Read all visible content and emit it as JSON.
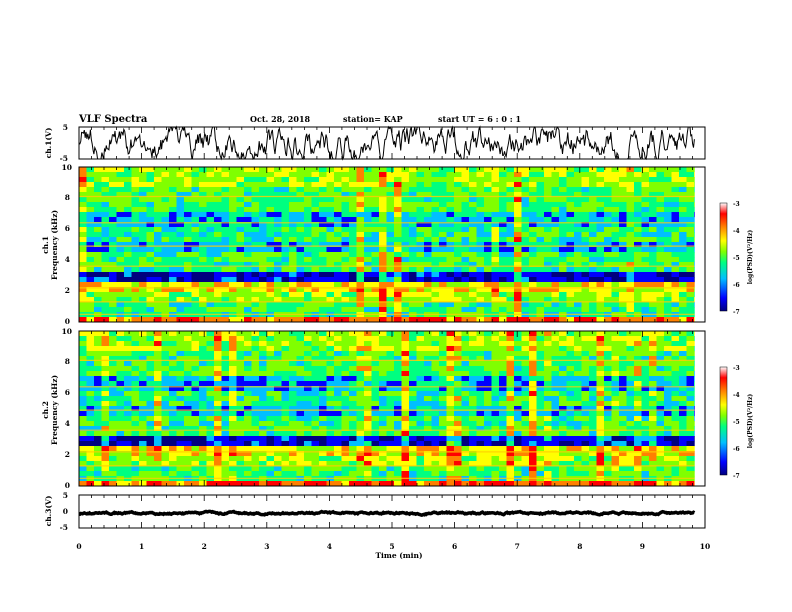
{
  "header": {
    "title": "VLF Spectra",
    "date": "Oct. 28, 2018",
    "station": "station= KAP",
    "start_ut": "start  UT  =   6 : 0  : 1"
  },
  "chart_data": [
    {
      "id": "ch1-waveform",
      "type": "line",
      "ylabel": "ch.1(V)",
      "ylim": [
        -5,
        5
      ],
      "y_ticks": [
        "5",
        "-5"
      ],
      "x_range_min": [
        0,
        9.83
      ],
      "y_mean": 0,
      "y_amplitude": 4.5
    },
    {
      "id": "ch1-spectrogram",
      "type": "heatmap",
      "ylabel_channel": "ch.1",
      "ylabel": "Frequency  (kHz)",
      "ylim": [
        0,
        10
      ],
      "y_ticks": [
        "0",
        "2",
        "4",
        "6",
        "8",
        "10"
      ],
      "x_range_min": [
        0,
        9.83
      ],
      "colorbar": {
        "label": "log(PSD)(V²/Hz)",
        "range": [
          -7,
          -3
        ],
        "ticks": [
          "-3",
          "-4",
          "-5",
          "-6",
          "-7"
        ],
        "colors": [
          "#00007f",
          "#0000ff",
          "#00bfff",
          "#00ff80",
          "#80ff00",
          "#ffff00",
          "#ff8000",
          "#ff0000",
          "#ffffff"
        ]
      }
    },
    {
      "id": "ch2-spectrogram",
      "type": "heatmap",
      "ylabel_channel": "ch.2",
      "ylabel": "Frequency  (kHz)",
      "ylim": [
        0,
        10
      ],
      "y_ticks": [
        "0",
        "2",
        "4",
        "6",
        "8",
        "10"
      ],
      "x_range_min": [
        0,
        9.83
      ],
      "colorbar": {
        "label": "log(PSD)(V²/Hz)",
        "range": [
          -7,
          -3
        ],
        "ticks": [
          "-3",
          "-4",
          "-5",
          "-6",
          "-7"
        ],
        "colors": [
          "#00007f",
          "#0000ff",
          "#00bfff",
          "#00ff80",
          "#80ff00",
          "#ffff00",
          "#ff8000",
          "#ff0000",
          "#ffffff"
        ]
      }
    },
    {
      "id": "ch3-waveform",
      "type": "line",
      "ylabel": "ch.3(V)",
      "ylim": [
        -5,
        5
      ],
      "y_ticks": [
        "5",
        "0",
        "-5"
      ],
      "x_range_min": [
        0,
        9.83
      ],
      "y_mean": -0.5,
      "y_amplitude": 0.3
    }
  ],
  "x_axis": {
    "label": "Time  (min)",
    "range": [
      0,
      10
    ],
    "ticks": [
      "0",
      "1",
      "2",
      "3",
      "4",
      "5",
      "6",
      "7",
      "8",
      "9",
      "10"
    ]
  }
}
